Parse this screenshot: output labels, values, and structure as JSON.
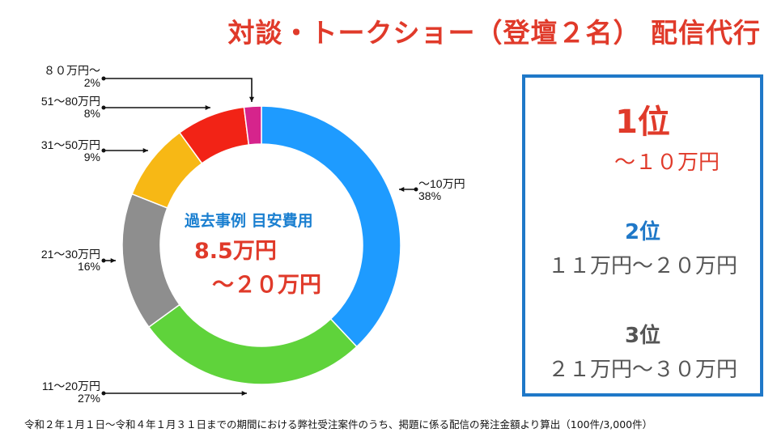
{
  "title": "対談・トークショー（登壇２名） 配信代行",
  "chart_data": {
    "type": "pie",
    "subtype": "donut",
    "series": [
      {
        "category": "〜10万円",
        "value": 38,
        "pct_label": "38%",
        "color": "#1e9bff"
      },
      {
        "category": "11〜20万円",
        "value": 27,
        "pct_label": "27%",
        "color": "#5fd33b"
      },
      {
        "category": "21〜30万円",
        "value": 16,
        "pct_label": "16%",
        "color": "#8e8e8e"
      },
      {
        "category": "31〜50万円",
        "value": 9,
        "pct_label": "9%",
        "color": "#f7b815"
      },
      {
        "category": "51〜80万円",
        "value": 8,
        "pct_label": "8%",
        "color": "#f22316"
      },
      {
        "category": "８０万円〜",
        "value": 2,
        "pct_label": "2%",
        "color": "#d6248c"
      }
    ]
  },
  "center": {
    "heading": "過去事例 目安費用",
    "line1": "8.5万円",
    "line2": "〜２０万円"
  },
  "ranking": [
    {
      "rank": "1位",
      "range": "〜１０万円"
    },
    {
      "rank": "2位",
      "range": "１１万円〜２０万円"
    },
    {
      "rank": "3位",
      "range": "２１万円〜３０万円"
    }
  ],
  "footnote": "令和２年１月１日〜令和４年１月３１日までの期間における弊社受注案件のうち、掲題に係る配信の発注金額より算出（100件/3,000件）"
}
